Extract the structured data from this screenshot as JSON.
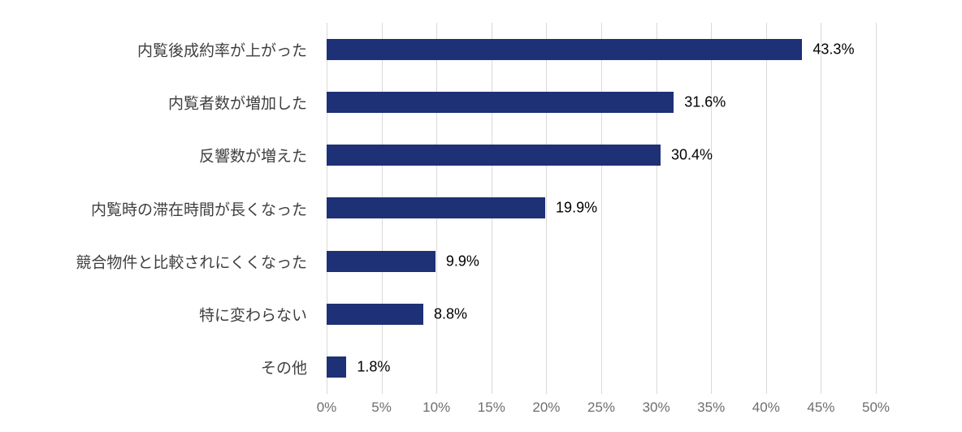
{
  "chart_data": {
    "type": "bar",
    "orientation": "horizontal",
    "title": "",
    "xlabel": "",
    "ylabel": "",
    "categories": [
      "内覧後成約率が上がった",
      "内覧者数が増加した",
      "反響数が増えた",
      "内覧時の滞在時間が長くなった",
      "競合物件と比較されにくくなった",
      "特に変わらない",
      "その他"
    ],
    "values": [
      43.3,
      31.6,
      30.4,
      19.9,
      9.9,
      8.8,
      1.8
    ],
    "value_labels": [
      "43.3%",
      "31.6%",
      "30.4%",
      "19.9%",
      "9.9%",
      "8.8%",
      "1.8%"
    ],
    "x_ticks": [
      "0%",
      "5%",
      "10%",
      "15%",
      "20%",
      "25%",
      "30%",
      "35%",
      "40%",
      "45%",
      "50%"
    ],
    "xlim": [
      0,
      50
    ],
    "grid": true,
    "legend": false,
    "colors": {
      "bar": "#1E3076",
      "gridline": "#D9D9D9",
      "tick_label": "#6E6E6E",
      "category_label": "#3F3F3F",
      "value_label": "#000000",
      "background": "#FFFFFF"
    }
  }
}
